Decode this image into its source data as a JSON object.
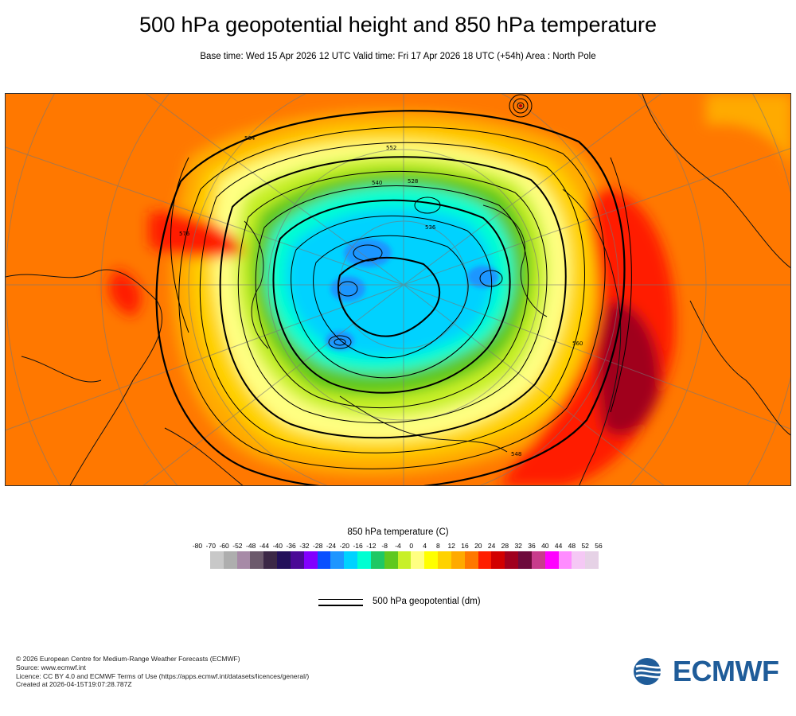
{
  "header": {
    "title": "500 hPa geopotential height and 850 hPa temperature",
    "subtitle": "Base time: Wed 15 Apr 2026 12 UTC Valid time: Fri 17 Apr 2026 18 UTC (+54h) Area : North Pole"
  },
  "map": {
    "contour_labels": [
      "536",
      "552",
      "564",
      "576",
      "528",
      "540",
      "560",
      "548"
    ]
  },
  "colorbar": {
    "title": "850 hPa temperature (C)",
    "ticks": [
      "-80",
      "-70",
      "-60",
      "-52",
      "-48",
      "-44",
      "-40",
      "-36",
      "-32",
      "-28",
      "-24",
      "-20",
      "-16",
      "-12",
      "-8",
      "-4",
      "0",
      "4",
      "8",
      "12",
      "16",
      "20",
      "24",
      "28",
      "32",
      "36",
      "40",
      "44",
      "48",
      "52",
      "56"
    ],
    "colors": [
      "#e3e3e3",
      "#c8c8c8",
      "#aeaeae",
      "#a78aa7",
      "#6c5a6c",
      "#3c2846",
      "#23105a",
      "#4b0a96",
      "#8200ff",
      "#0a50ff",
      "#1e96ff",
      "#00d2ff",
      "#00ffd2",
      "#1ec864",
      "#5fc81e",
      "#c8f028",
      "#ffff82",
      "#ffff00",
      "#ffd200",
      "#ffaa00",
      "#ff7800",
      "#ff1e00",
      "#d20000",
      "#a0001e",
      "#6e0a3c",
      "#c83c8c",
      "#ff00ff",
      "#ff8cff",
      "#f5c8f5",
      "#e6d2e6",
      "#e6e6e6"
    ]
  },
  "legend": {
    "geopotential_label": "500 hPa geopotential (dm)"
  },
  "credits": {
    "line1": "© 2026 European Centre for Medium-Range Weather Forecasts (ECMWF)",
    "line2": "Source: www.ecmwf.int",
    "line3": "Licence: CC BY 4.0 and ECMWF Terms of Use (https://apps.ecmwf.int/datasets/licences/general/)",
    "line4": "Created at 2026-04-15T19:07:28.787Z"
  },
  "logo": {
    "text": "ECMWF",
    "color": "#1f5c99"
  }
}
